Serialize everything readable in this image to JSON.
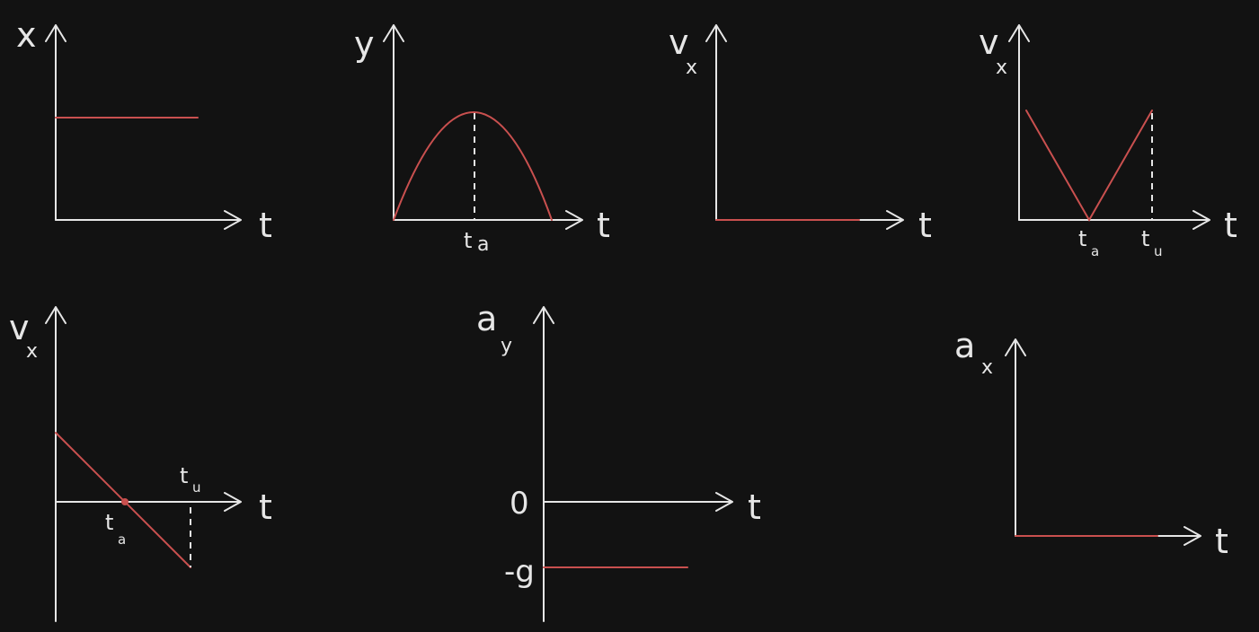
{
  "colors": {
    "background": "#121212",
    "axis": "#e6e6e6",
    "curve": "#c9504f"
  },
  "graphs": {
    "x_t": {
      "ylabel": "x",
      "xlabel": "t"
    },
    "y_t": {
      "ylabel": "y",
      "xlabel": "t",
      "tick": "t",
      "tick_sub": "a"
    },
    "vx_t1": {
      "ylabel": "v",
      "ylabel_sub": "x",
      "xlabel": "t"
    },
    "vx_t2": {
      "ylabel": "v",
      "ylabel_sub": "x",
      "xlabel": "t",
      "tick1": "t",
      "tick1_sub": "a",
      "tick2": "t",
      "tick2_sub": "u"
    },
    "vx_t3": {
      "ylabel": "v",
      "ylabel_sub": "x",
      "xlabel": "t",
      "tick1": "t",
      "tick1_sub": "a",
      "tick2": "t",
      "tick2_sub": "u"
    },
    "ay_t": {
      "ylabel": "a",
      "ylabel_sub": "y",
      "xlabel": "t",
      "zero": "0",
      "neg_g": "-g"
    },
    "ax_t": {
      "ylabel": "a",
      "ylabel_sub": "x",
      "xlabel": "t"
    }
  }
}
